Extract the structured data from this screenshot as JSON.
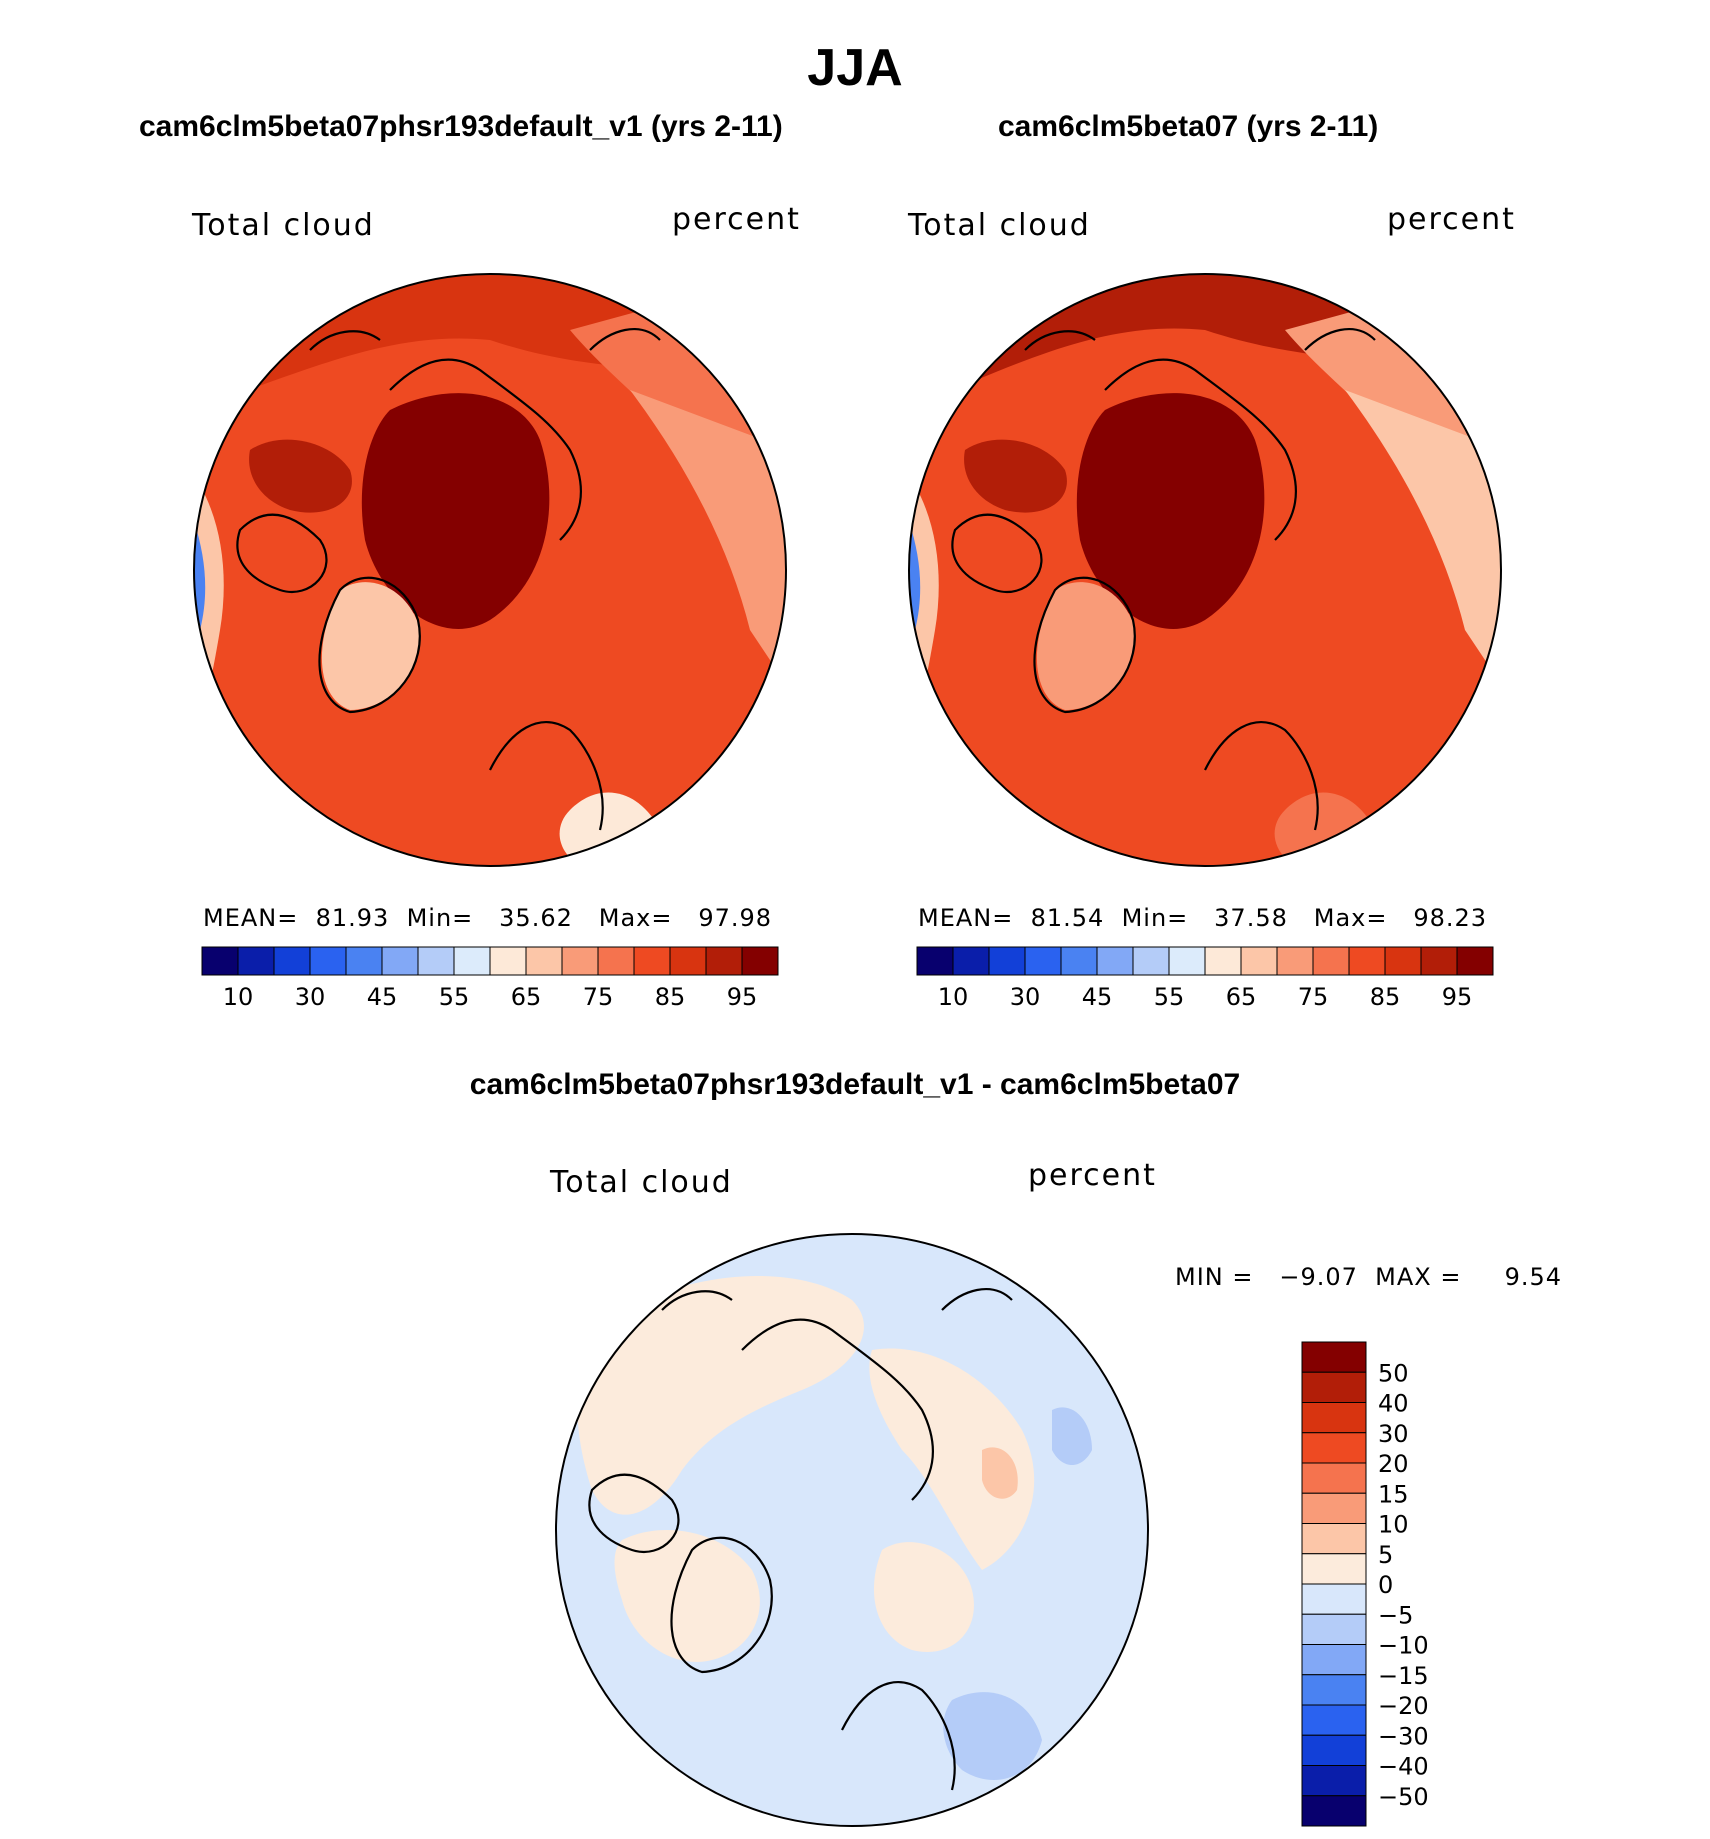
{
  "title": "JJA",
  "colors": {
    "abs_palette": [
      "#08006e",
      "#0a1eaa",
      "#1240d8",
      "#2a62f0",
      "#4a82f2",
      "#82a8f6",
      "#b4ccf8",
      "#dcebfb",
      "#fde9d8",
      "#fcc6a8",
      "#f99b78",
      "#f5734e",
      "#ee4a22",
      "#d83410",
      "#b21e08",
      "#840000"
    ],
    "diff_palette": [
      "#08006e",
      "#0a1eaa",
      "#1240d8",
      "#2a62f0",
      "#4a82f2",
      "#82a8f6",
      "#b4ccf8",
      "#d8e7fb",
      "#fcebdc",
      "#fcc6a8",
      "#f99b78",
      "#f5734e",
      "#ee4a22",
      "#d83410",
      "#b21e08",
      "#840000"
    ]
  },
  "panels": [
    {
      "title": "cam6clm5beta07phsr193default_v1 (yrs 2-11)",
      "field": "Total cloud",
      "units": "percent",
      "stats_text": "MEAN=  81.93  Min=   35.62   Max=   97.98"
    },
    {
      "title": "cam6clm5beta07 (yrs 2-11)",
      "field": "Total cloud",
      "units": "percent",
      "stats_text": "MEAN=  81.54  Min=   37.58   Max=   98.23"
    },
    {
      "title": "cam6clm5beta07phsr193default_v1 - cam6clm5beta07",
      "field": "Total cloud",
      "units": "percent",
      "stats_text": "MIN =   −9.07  MAX =     9.54"
    }
  ],
  "chart_data": [
    {
      "type": "heatmap",
      "projection": "north polar stereographic",
      "title": "cam6clm5beta07phsr193default_v1 (yrs 2-11)",
      "field": "Total cloud",
      "units": "percent",
      "mean": 81.93,
      "min": 35.62,
      "max": 97.98,
      "colorbar_levels": [
        10,
        30,
        45,
        55,
        65,
        75,
        85,
        95
      ],
      "colorbar_ticks": [
        "10",
        "30",
        "45",
        "55",
        "65",
        "75",
        "85",
        "95"
      ]
    },
    {
      "type": "heatmap",
      "projection": "north polar stereographic",
      "title": "cam6clm5beta07 (yrs 2-11)",
      "field": "Total cloud",
      "units": "percent",
      "mean": 81.54,
      "min": 37.58,
      "max": 98.23,
      "colorbar_levels": [
        10,
        30,
        45,
        55,
        65,
        75,
        85,
        95
      ],
      "colorbar_ticks": [
        "10",
        "30",
        "45",
        "55",
        "65",
        "75",
        "85",
        "95"
      ]
    },
    {
      "type": "heatmap",
      "projection": "north polar stereographic",
      "title": "cam6clm5beta07phsr193default_v1 - cam6clm5beta07",
      "field": "Total cloud",
      "units": "percent",
      "min": -9.07,
      "max": 9.54,
      "colorbar_levels": [
        50,
        40,
        30,
        20,
        15,
        10,
        5,
        0,
        -5,
        -10,
        -15,
        -20,
        -30,
        -40,
        -50
      ],
      "colorbar_ticks": [
        "50",
        "40",
        "30",
        "20",
        "15",
        "10",
        "5",
        "0",
        "−5",
        "−10",
        "−15",
        "−20",
        "−30",
        "−40",
        "−50"
      ]
    }
  ]
}
